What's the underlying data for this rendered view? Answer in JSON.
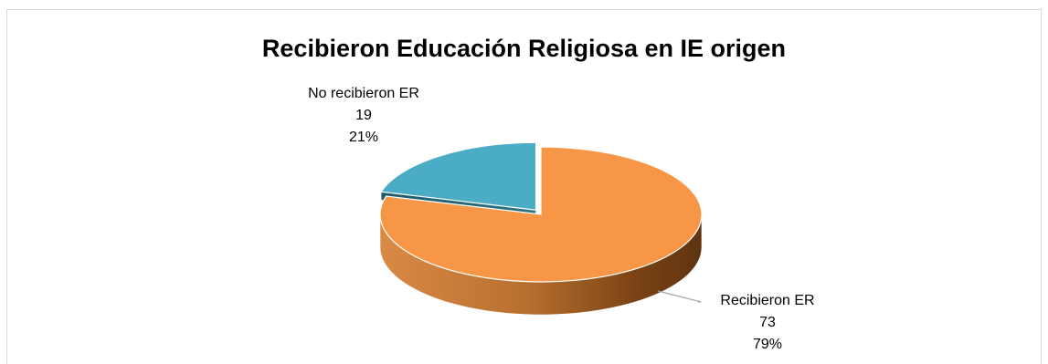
{
  "chart_data": {
    "type": "pie",
    "title": "Recibieron Educación Religiosa en IE origen",
    "slices": [
      {
        "name": "Recibieron ER",
        "value": 73,
        "percent": "79%",
        "color": "#f79646"
      },
      {
        "name": "No recibieron ER",
        "value": 19,
        "percent": "21%",
        "color": "#4bacc6"
      }
    ],
    "style": "3d",
    "legend": "none"
  }
}
